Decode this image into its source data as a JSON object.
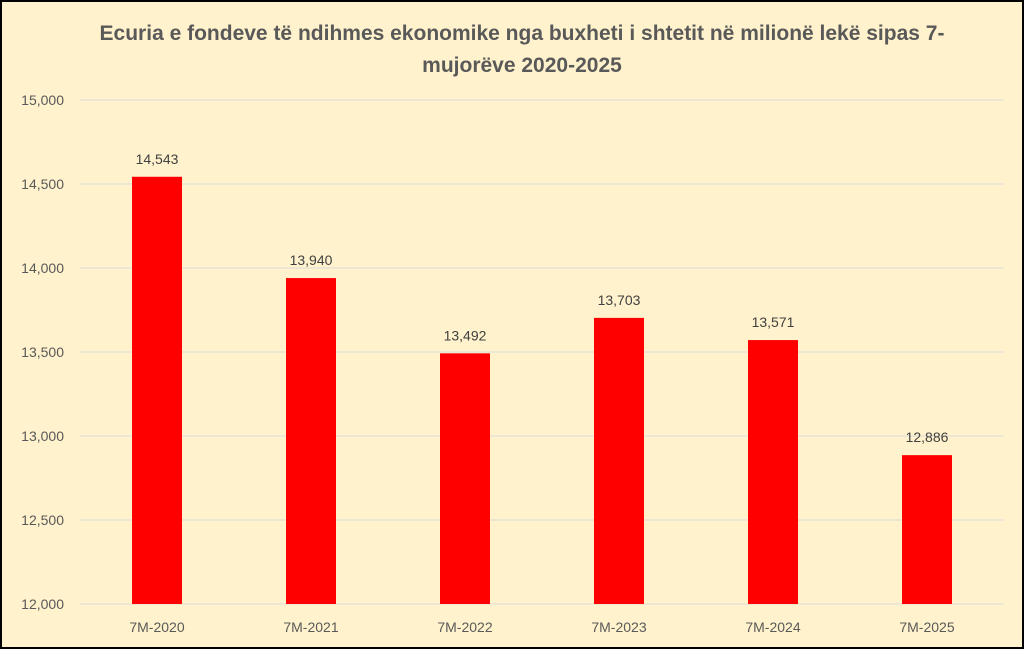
{
  "chart_data": {
    "type": "bar",
    "title": "Ecuria e fondeve të ndihmes ekonomike nga buxheti i shtetit në milionë lekë sipas 7-mujorëve 2020-2025",
    "categories": [
      "7M-2020",
      "7M-2021",
      "7M-2022",
      "7M-2023",
      "7M-2024",
      "7M-2025"
    ],
    "values": [
      14543,
      13940,
      13492,
      13703,
      13571,
      12886
    ],
    "value_labels": [
      "14,543",
      "13,940",
      "13,492",
      "13,703",
      "13,571",
      "12,886"
    ],
    "ylim": [
      12000,
      15000
    ],
    "yticks": [
      12000,
      12500,
      13000,
      13500,
      14000,
      14500,
      15000
    ],
    "ytick_labels": [
      "12,000",
      "12,500",
      "13,000",
      "13,500",
      "14,000",
      "14,500",
      "15,000"
    ],
    "xlabel": "",
    "ylabel": "",
    "grid": true,
    "legend": "none",
    "colors": {
      "bar": "#ff0000",
      "background": "#fff2cc",
      "grid": "#d9d9d9",
      "text": "#595959",
      "title": "#595959",
      "border": "#000000"
    }
  }
}
